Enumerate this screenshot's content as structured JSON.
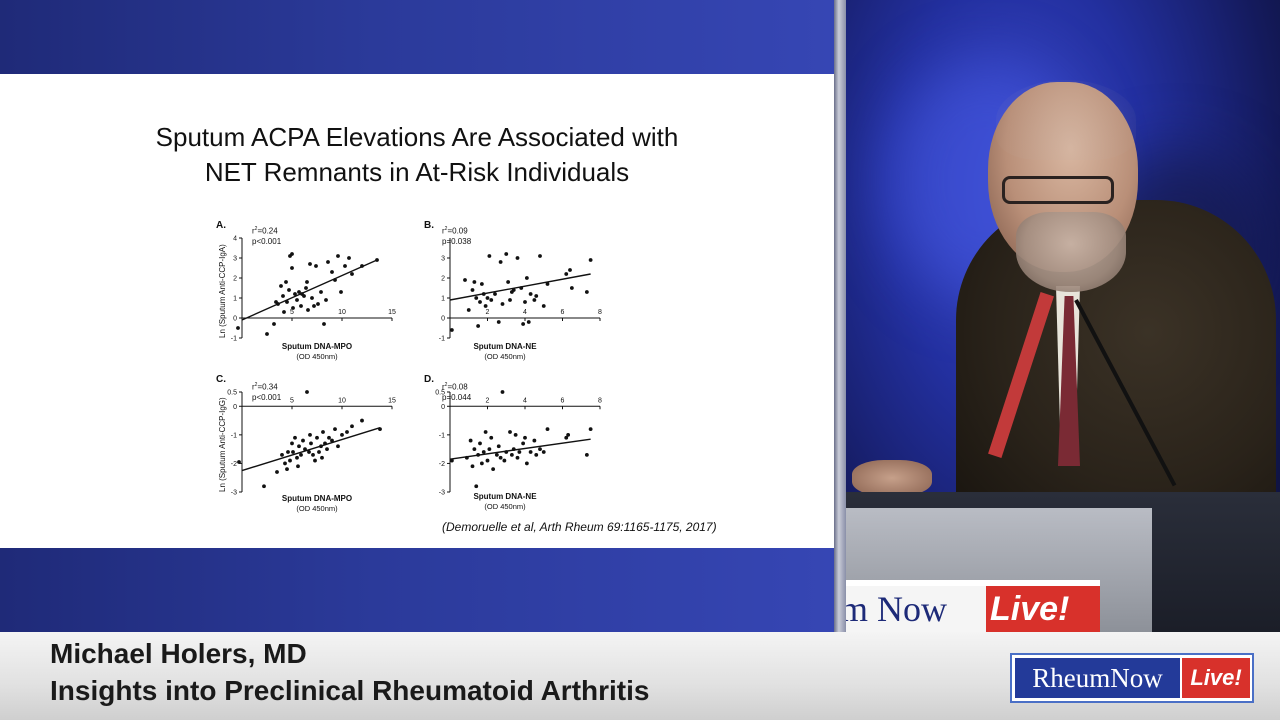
{
  "slide": {
    "title_line1": "Sputum ACPA Elevations Are Associated with",
    "title_line2": "NET Remnants in At-Risk Individuals",
    "citation": "(Demoruelle et al, Arth Rheum 69:1165-1175, 2017)"
  },
  "lower_third": {
    "speaker": "Michael Holers, MD",
    "talk_title": "Insights into Preclinical Rheumatoid Arthritis"
  },
  "logo": {
    "left": "RheumNow",
    "right": "Live!"
  },
  "podium_sign": {
    "left": "m Now",
    "right": "Live!"
  },
  "colors": {
    "slide_band": "#2b3a9a",
    "logo_blue": "#233a99",
    "logo_red": "#d8312b"
  },
  "chart_data": [
    {
      "type": "scatter",
      "panel": "A.",
      "stat_r2": "r²=0.24",
      "stat_p": "p<0.001",
      "xlabel": "Sputum DNA-MPO",
      "xunit": "(OD 450nm)",
      "ylabel": "Ln (Sputum Anti-CCP-IgA)",
      "xlim": [
        0,
        15
      ],
      "ylim": [
        -1,
        4
      ],
      "xticks": [
        5,
        10,
        15
      ],
      "yticks": [
        -1,
        0,
        1,
        2,
        3,
        4
      ],
      "fit": [
        [
          0,
          -0.1
        ],
        [
          13.5,
          2.9
        ]
      ],
      "points": [
        [
          -0.4,
          -0.5
        ],
        [
          2.5,
          -0.8
        ],
        [
          3.2,
          -0.3
        ],
        [
          3.6,
          0.7
        ],
        [
          3.9,
          1.6
        ],
        [
          4.1,
          1.1
        ],
        [
          4.2,
          0.3
        ],
        [
          4.4,
          1.8
        ],
        [
          4.5,
          0.8
        ],
        [
          4.7,
          1.4
        ],
        [
          4.8,
          3.1
        ],
        [
          5.0,
          3.2
        ],
        [
          5.0,
          2.5
        ],
        [
          5.1,
          0.5
        ],
        [
          5.3,
          1.2
        ],
        [
          5.5,
          0.9
        ],
        [
          5.7,
          1.3
        ],
        [
          5.9,
          0.6
        ],
        [
          6.0,
          1.2
        ],
        [
          6.2,
          1.1
        ],
        [
          6.4,
          1.5
        ],
        [
          6.6,
          0.4
        ],
        [
          6.8,
          2.7
        ],
        [
          7.0,
          1.0
        ],
        [
          7.2,
          0.6
        ],
        [
          7.4,
          2.6
        ],
        [
          7.6,
          0.7
        ],
        [
          7.9,
          1.3
        ],
        [
          8.2,
          -0.3
        ],
        [
          8.4,
          0.9
        ],
        [
          8.6,
          2.8
        ],
        [
          9.0,
          2.3
        ],
        [
          9.3,
          1.9
        ],
        [
          9.6,
          3.1
        ],
        [
          9.9,
          1.3
        ],
        [
          10.3,
          2.6
        ],
        [
          10.7,
          3.0
        ],
        [
          11.0,
          2.2
        ],
        [
          12.0,
          2.6
        ],
        [
          13.5,
          2.9
        ],
        [
          3.4,
          0.8
        ],
        [
          6.5,
          1.8
        ]
      ]
    },
    {
      "type": "scatter",
      "panel": "B.",
      "stat_r2": "r²=0.09",
      "stat_p": "p=0.038",
      "xlabel": "Sputum DNA-NE",
      "xunit": "(OD 450nm)",
      "ylabel": "",
      "xlim": [
        0,
        8
      ],
      "ylim": [
        -1,
        4
      ],
      "xticks": [
        2,
        4,
        6,
        8
      ],
      "yticks": [
        -1,
        0,
        1,
        2,
        3
      ],
      "fit": [
        [
          0,
          0.9
        ],
        [
          7.5,
          2.2
        ]
      ],
      "points": [
        [
          0.1,
          -0.6
        ],
        [
          0.8,
          1.9
        ],
        [
          1.0,
          0.4
        ],
        [
          1.2,
          1.4
        ],
        [
          1.3,
          1.8
        ],
        [
          1.5,
          -0.4
        ],
        [
          1.6,
          0.8
        ],
        [
          1.7,
          1.7
        ],
        [
          1.8,
          1.2
        ],
        [
          1.9,
          0.6
        ],
        [
          2.0,
          1.0
        ],
        [
          2.1,
          3.1
        ],
        [
          2.2,
          0.9
        ],
        [
          2.4,
          1.2
        ],
        [
          2.6,
          -0.2
        ],
        [
          2.8,
          0.7
        ],
        [
          3.0,
          3.2
        ],
        [
          3.1,
          1.8
        ],
        [
          3.2,
          0.9
        ],
        [
          3.4,
          1.4
        ],
        [
          3.6,
          3.0
        ],
        [
          3.8,
          1.5
        ],
        [
          3.9,
          -0.3
        ],
        [
          4.0,
          0.8
        ],
        [
          4.2,
          -0.2
        ],
        [
          4.3,
          1.2
        ],
        [
          4.5,
          0.9
        ],
        [
          4.6,
          1.1
        ],
        [
          4.8,
          3.1
        ],
        [
          5.0,
          0.6
        ],
        [
          5.2,
          1.7
        ],
        [
          6.2,
          2.2
        ],
        [
          6.4,
          2.4
        ],
        [
          6.5,
          1.5
        ],
        [
          7.3,
          1.3
        ],
        [
          7.5,
          2.9
        ],
        [
          2.7,
          2.8
        ],
        [
          3.3,
          1.3
        ],
        [
          1.4,
          1.0
        ],
        [
          4.1,
          2.0
        ]
      ]
    },
    {
      "type": "scatter",
      "panel": "C.",
      "stat_r2": "r²=0.34",
      "stat_p": "p<0.001",
      "xlabel": "Sputum DNA-MPO",
      "xunit": "(OD 450nm)",
      "ylabel": "Ln (Sputum Anti-CCP-IgG)",
      "xlim": [
        0,
        15
      ],
      "ylim": [
        -3,
        0.5
      ],
      "xticks": [
        5,
        10,
        15
      ],
      "yticks": [
        -3,
        -2,
        -1,
        0,
        0.5
      ],
      "fit": [
        [
          0,
          -2.25
        ],
        [
          13.8,
          -0.75
        ]
      ],
      "points": [
        [
          -0.3,
          -1.95
        ],
        [
          2.2,
          -2.8
        ],
        [
          3.5,
          -2.3
        ],
        [
          4.0,
          -1.7
        ],
        [
          4.3,
          -2.0
        ],
        [
          4.6,
          -1.6
        ],
        [
          4.8,
          -1.9
        ],
        [
          5.0,
          -1.3
        ],
        [
          5.1,
          -1.6
        ],
        [
          5.3,
          -1.1
        ],
        [
          5.5,
          -1.8
        ],
        [
          5.7,
          -1.4
        ],
        [
          5.9,
          -1.7
        ],
        [
          6.1,
          -1.2
        ],
        [
          6.3,
          -1.5
        ],
        [
          6.5,
          0.5
        ],
        [
          6.7,
          -1.6
        ],
        [
          6.9,
          -1.3
        ],
        [
          7.1,
          -1.7
        ],
        [
          7.3,
          -1.9
        ],
        [
          7.5,
          -1.1
        ],
        [
          7.7,
          -1.6
        ],
        [
          7.9,
          -1.4
        ],
        [
          8.1,
          -0.9
        ],
        [
          8.3,
          -1.3
        ],
        [
          8.5,
          -1.5
        ],
        [
          8.7,
          -1.1
        ],
        [
          9.0,
          -1.2
        ],
        [
          9.3,
          -0.8
        ],
        [
          9.6,
          -1.4
        ],
        [
          10.0,
          -1.0
        ],
        [
          10.5,
          -0.9
        ],
        [
          11.0,
          -0.7
        ],
        [
          12.0,
          -0.5
        ],
        [
          13.8,
          -0.8
        ],
        [
          5.6,
          -2.1
        ],
        [
          4.5,
          -2.2
        ],
        [
          6.8,
          -1.0
        ],
        [
          8.0,
          -1.8
        ]
      ]
    },
    {
      "type": "scatter",
      "panel": "D.",
      "stat_r2": "r²=0.08",
      "stat_p": "p=0.044",
      "xlabel": "Sputum DNA-NE",
      "xunit": "(OD 450nm)",
      "ylabel": "",
      "xlim": [
        0,
        8
      ],
      "ylim": [
        -3,
        0.5
      ],
      "xticks": [
        2,
        4,
        6,
        8
      ],
      "yticks": [
        -3,
        -2,
        -1,
        0,
        0.5
      ],
      "fit": [
        [
          0,
          -1.85
        ],
        [
          7.5,
          -1.15
        ]
      ],
      "points": [
        [
          0.1,
          -1.9
        ],
        [
          0.9,
          -1.8
        ],
        [
          1.1,
          -1.2
        ],
        [
          1.2,
          -2.1
        ],
        [
          1.3,
          -1.5
        ],
        [
          1.4,
          -2.8
        ],
        [
          1.5,
          -1.7
        ],
        [
          1.6,
          -1.3
        ],
        [
          1.7,
          -2.0
        ],
        [
          1.8,
          -1.6
        ],
        [
          1.9,
          -0.9
        ],
        [
          2.0,
          -1.9
        ],
        [
          2.1,
          -1.5
        ],
        [
          2.2,
          -1.1
        ],
        [
          2.3,
          -2.2
        ],
        [
          2.5,
          -1.7
        ],
        [
          2.6,
          -1.4
        ],
        [
          2.7,
          -1.8
        ],
        [
          2.8,
          0.5
        ],
        [
          2.9,
          -1.9
        ],
        [
          3.0,
          -1.6
        ],
        [
          3.2,
          -0.9
        ],
        [
          3.3,
          -1.7
        ],
        [
          3.4,
          -1.5
        ],
        [
          3.6,
          -1.8
        ],
        [
          3.7,
          -1.6
        ],
        [
          3.9,
          -1.3
        ],
        [
          4.0,
          -1.1
        ],
        [
          4.1,
          -2.0
        ],
        [
          4.3,
          -1.6
        ],
        [
          4.5,
          -1.2
        ],
        [
          4.6,
          -1.7
        ],
        [
          4.8,
          -1.5
        ],
        [
          5.0,
          -1.6
        ],
        [
          5.2,
          -0.8
        ],
        [
          6.2,
          -1.1
        ],
        [
          6.3,
          -1.0
        ],
        [
          7.3,
          -1.7
        ],
        [
          7.5,
          -0.8
        ],
        [
          3.5,
          -1.0
        ]
      ]
    }
  ]
}
